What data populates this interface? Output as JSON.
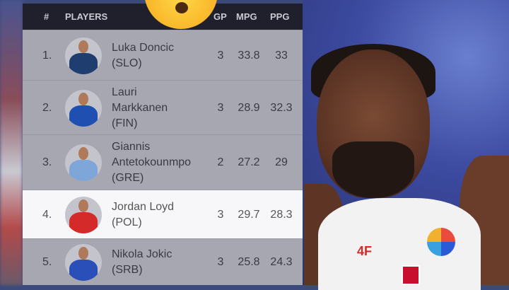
{
  "table": {
    "headers": {
      "rank": "#",
      "players": "PLAYERS",
      "gp": "GP",
      "mpg": "MPG",
      "ppg": "PPG"
    },
    "rows": [
      {
        "rank": "1.",
        "name_lines": [
          "Luka Doncic",
          "(SLO)"
        ],
        "gp": "3",
        "mpg": "33.8",
        "ppg": "33",
        "jersey_color": "#1f3d6e",
        "highlight": false
      },
      {
        "rank": "2.",
        "name_lines": [
          "Lauri",
          "Markkanen",
          "(FIN)"
        ],
        "gp": "3",
        "mpg": "28.9",
        "ppg": "32.3",
        "jersey_color": "#1f4fb0",
        "highlight": false
      },
      {
        "rank": "3.",
        "name_lines": [
          "Giannis",
          "Antetokounmpo",
          "(GRE)"
        ],
        "gp": "2",
        "mpg": "27.2",
        "ppg": "29",
        "jersey_color": "#7fa6d8",
        "highlight": false
      },
      {
        "rank": "4.",
        "name_lines": [
          "Jordan Loyd",
          "(POL)"
        ],
        "gp": "3",
        "mpg": "29.7",
        "ppg": "28.3",
        "jersey_color": "#d42a2a",
        "highlight": true
      },
      {
        "rank": "5.",
        "name_lines": [
          "Nikola Jokic",
          "(SRB)"
        ],
        "gp": "3",
        "mpg": "25.8",
        "ppg": "24.3",
        "jersey_color": "#2a4fb8",
        "highlight": false
      }
    ]
  },
  "emoji": "astonished-face",
  "photo": {
    "jersey_brand": "4F"
  }
}
